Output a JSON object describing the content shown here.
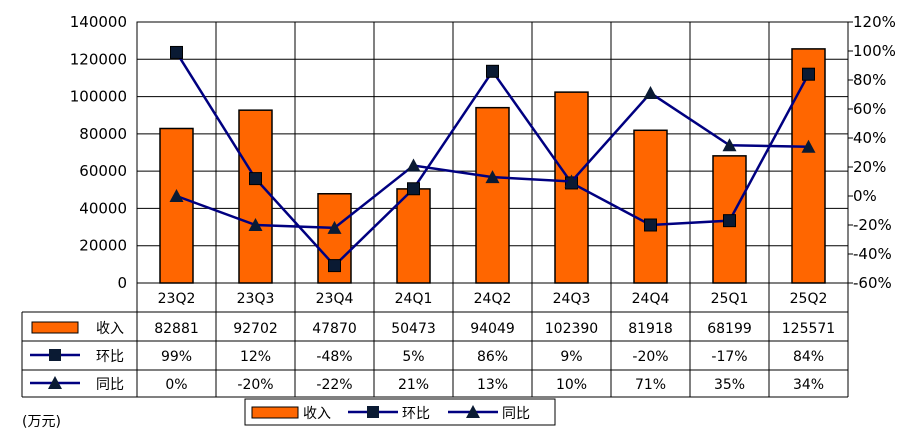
{
  "chart_data": {
    "type": "bar+line",
    "categories": [
      "23Q2",
      "23Q3",
      "23Q4",
      "24Q1",
      "24Q2",
      "24Q3",
      "24Q4",
      "25Q1",
      "25Q2"
    ],
    "left_axis": {
      "ylim": [
        0,
        140000
      ],
      "ticks": [
        "0",
        "20000",
        "40000",
        "60000",
        "80000",
        "100000",
        "120000",
        "140000"
      ]
    },
    "right_axis": {
      "ylim": [
        -60,
        120
      ],
      "ticks": [
        "-60%",
        "-40%",
        "-20%",
        "0%",
        "20%",
        "40%",
        "60%",
        "80%",
        "100%",
        "120%"
      ]
    },
    "series": [
      {
        "name": "收入",
        "kind": "bar",
        "axis": "left",
        "color": "#FF6600",
        "values": [
          82881,
          92702,
          47870,
          50473,
          94049,
          102390,
          81918,
          68199,
          125571
        ],
        "labels": [
          "82881",
          "92702",
          "47870",
          "50473",
          "94049",
          "102390",
          "81918",
          "68199",
          "125571"
        ]
      },
      {
        "name": "环比",
        "kind": "line",
        "marker": "square",
        "axis": "right",
        "color": "#000080",
        "values": [
          99,
          12,
          -48,
          5,
          86,
          9,
          -20,
          -17,
          84
        ],
        "labels": [
          "99%",
          "12%",
          "-48%",
          "5%",
          "86%",
          "9%",
          "-20%",
          "-17%",
          "84%"
        ]
      },
      {
        "name": "同比",
        "kind": "line",
        "marker": "triangle",
        "axis": "right",
        "color": "#000080",
        "values": [
          0,
          -20,
          -22,
          21,
          13,
          10,
          71,
          35,
          34
        ],
        "labels": [
          "0%",
          "-20%",
          "-22%",
          "21%",
          "13%",
          "10%",
          "71%",
          "35%",
          "34%"
        ]
      }
    ],
    "grid": true,
    "legend_position": "bottom",
    "unit_label": "(万元)"
  }
}
